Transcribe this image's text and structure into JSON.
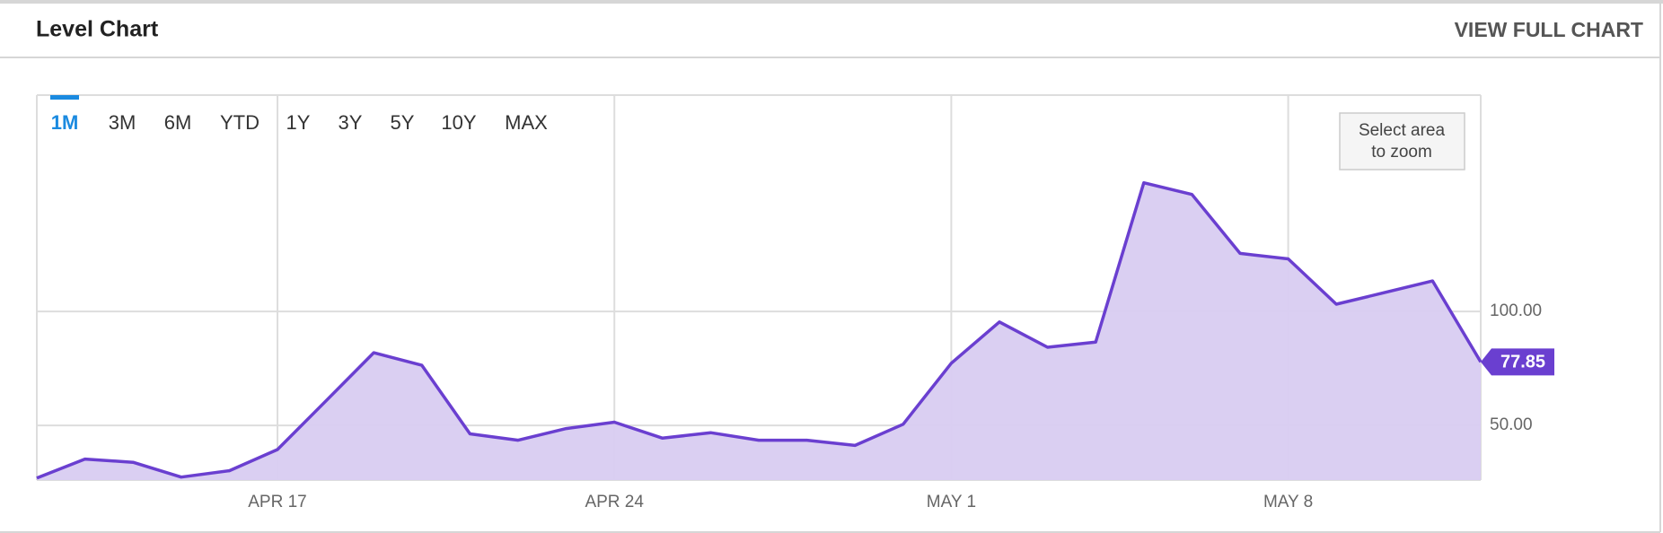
{
  "header": {
    "title": "Level Chart",
    "link": "VIEW FULL CHART"
  },
  "ranges": [
    "1M",
    "3M",
    "6M",
    "YTD",
    "1Y",
    "3Y",
    "5Y",
    "10Y",
    "MAX"
  ],
  "active_range": "1M",
  "zoom_hint": [
    "Select area",
    "to zoom"
  ],
  "chart_data": {
    "type": "area",
    "color": "#6a3fd0",
    "fill": "#d8ccf1",
    "categories": [
      null,
      null,
      null,
      null,
      null,
      "APR 17",
      null,
      null,
      null,
      null,
      null,
      null,
      "APR 24",
      null,
      null,
      null,
      null,
      null,
      null,
      "MAY 1",
      null,
      null,
      null,
      null,
      null,
      null,
      "MAY 8",
      null,
      null,
      null,
      null
    ],
    "values": [
      26.9,
      35.2,
      33.8,
      27.3,
      30.1,
      39.4,
      60.6,
      81.9,
      76.4,
      46.3,
      43.5,
      48.6,
      51.4,
      44.4,
      46.8,
      43.5,
      43.5,
      41.2,
      50.5,
      77.3,
      95.4,
      84.3,
      86.6,
      156.5,
      151.4,
      125.5,
      123.1,
      103.2,
      108.3,
      113.4,
      77.85
    ],
    "last_label": "77.85",
    "ylim": [
      26,
      195
    ],
    "yticks": [
      {
        "value": 50,
        "label": "50.00"
      },
      {
        "value": 100,
        "label": "100.00"
      }
    ],
    "grid": true
  }
}
